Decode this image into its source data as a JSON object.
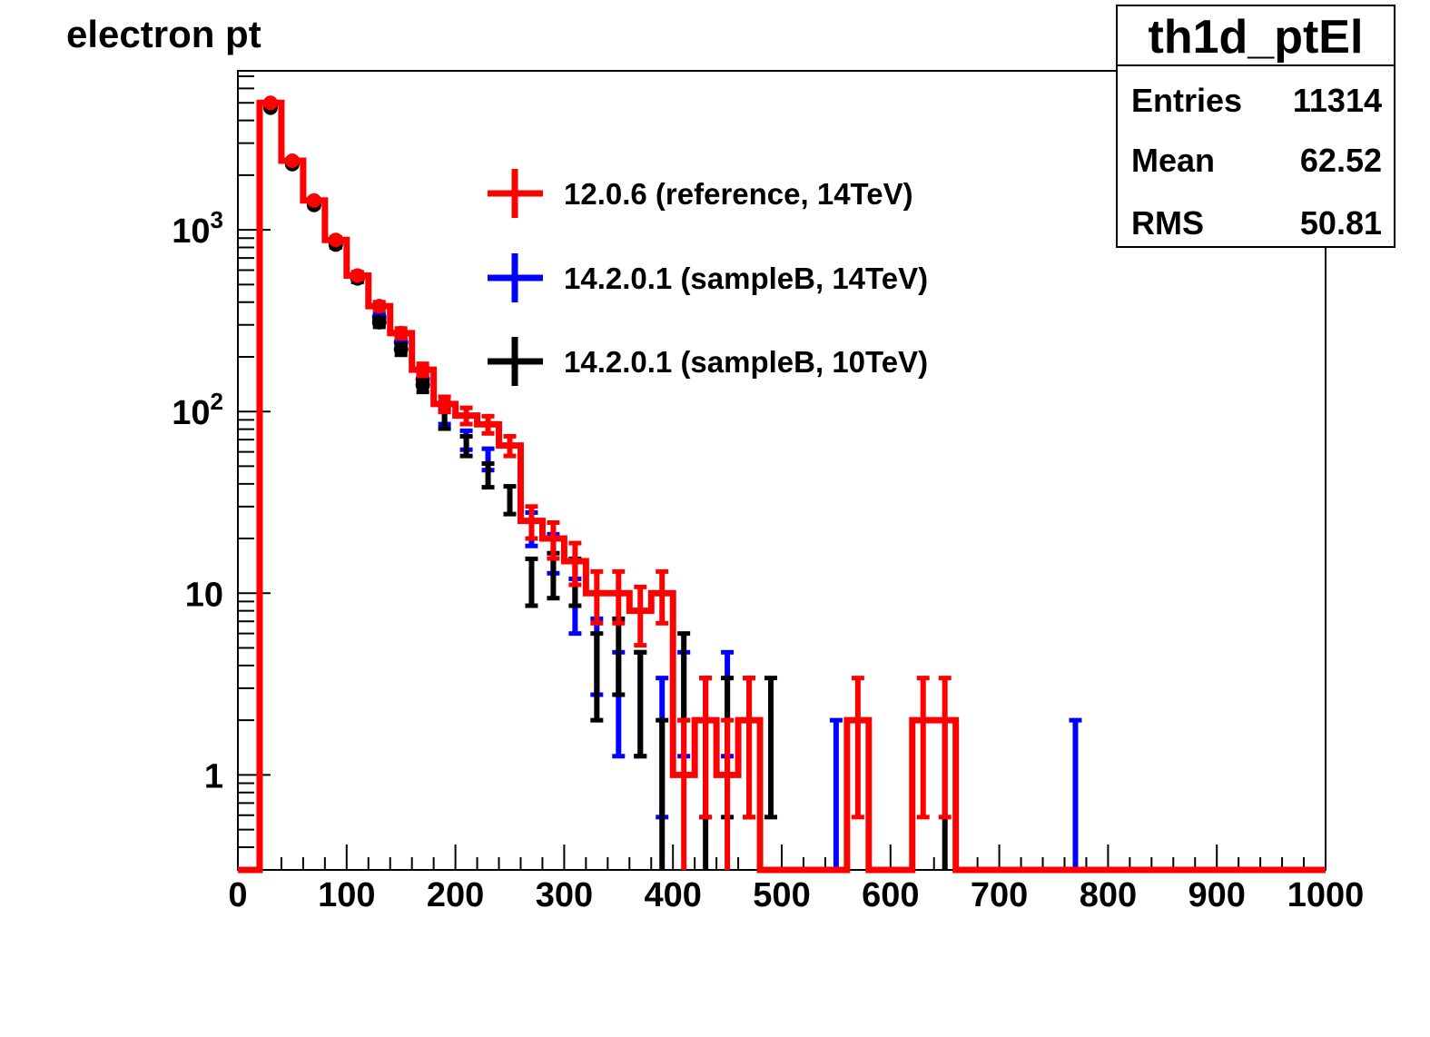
{
  "chart_data": {
    "type": "histogram",
    "title": "electron pt",
    "xlabel": "",
    "ylabel": "",
    "xlim": [
      0,
      1000
    ],
    "ylim": [
      0.3,
      7500
    ],
    "yscale": "log",
    "bin_width": 20,
    "grid": false,
    "x_ticks": [
      "0",
      "100",
      "200",
      "300",
      "400",
      "500",
      "600",
      "700",
      "800",
      "900",
      "1000"
    ],
    "y_ticks": [
      {
        "value": 1,
        "base": "1",
        "exp": ""
      },
      {
        "value": 10,
        "base": "10",
        "exp": ""
      },
      {
        "value": 100,
        "base": "10",
        "exp": "2"
      },
      {
        "value": 1000,
        "base": "10",
        "exp": "3"
      }
    ],
    "legend_position": "top-center",
    "series": [
      {
        "name": "12.0.6 (reference, 14TeV)",
        "color": "#ff0000",
        "style": "step-with-errors",
        "x": [
          30,
          50,
          70,
          90,
          110,
          130,
          150,
          170,
          190,
          210,
          230,
          250,
          270,
          290,
          310,
          330,
          350,
          370,
          390,
          410,
          430,
          450,
          470,
          570,
          630,
          650
        ],
        "values": [
          5000,
          2400,
          1450,
          880,
          560,
          380,
          270,
          170,
          110,
          95,
          85,
          65,
          25,
          20,
          15,
          10,
          10,
          8,
          10,
          1,
          2,
          1,
          2,
          2,
          2,
          2
        ]
      },
      {
        "name": "14.2.0.1 (sampleB, 14TeV)",
        "color": "#0000ff",
        "style": "errors",
        "x": [
          30,
          50,
          70,
          90,
          110,
          130,
          150,
          170,
          190,
          210,
          230,
          270,
          290,
          310,
          330,
          350,
          370,
          390,
          410,
          430,
          450,
          550,
          770
        ],
        "values": [
          4950,
          2350,
          1420,
          860,
          560,
          330,
          240,
          150,
          95,
          70,
          55,
          23,
          17,
          9,
          5,
          3,
          3,
          2,
          3,
          2,
          3,
          1,
          1
        ]
      },
      {
        "name": "14.2.0.1 (sampleB, 10TeV)",
        "color": "#000000",
        "style": "errors",
        "x": [
          30,
          50,
          70,
          90,
          110,
          130,
          150,
          170,
          190,
          210,
          230,
          250,
          270,
          290,
          310,
          330,
          350,
          370,
          390,
          410,
          430,
          450,
          470,
          490,
          650
        ],
        "values": [
          4700,
          2300,
          1370,
          830,
          540,
          310,
          220,
          140,
          90,
          65,
          45,
          33,
          12,
          13,
          12,
          4,
          5,
          3,
          1,
          4,
          1,
          2,
          2,
          2,
          1
        ]
      }
    ]
  },
  "stats_box": {
    "title": "th1d_ptEl",
    "rows": [
      {
        "label": "Entries",
        "value": "11314"
      },
      {
        "label": "Mean",
        "value": "62.52"
      },
      {
        "label": "RMS",
        "value": "50.81"
      }
    ]
  }
}
